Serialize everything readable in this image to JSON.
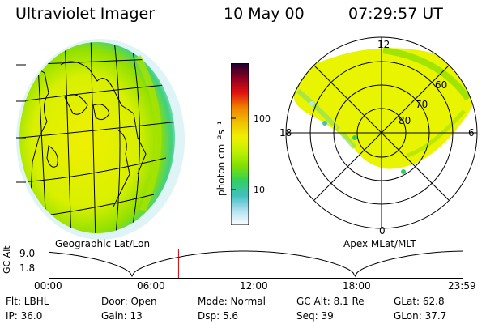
{
  "header": {
    "instrument": "Ultraviolet Imager",
    "date": "10 May 00",
    "time": "07:29:57 UT"
  },
  "colorbar": {
    "unit_label": "photon cm⁻²s⁻¹",
    "ticks": [
      "100",
      "10"
    ],
    "scale": "log",
    "colors": [
      "#1a0030",
      "#8b0020",
      "#e01010",
      "#f08000",
      "#f0c000",
      "#f0f000",
      "#c0f000",
      "#80e000",
      "#30d060",
      "#40c0c0",
      "#b0e0f0",
      "#ffffff"
    ]
  },
  "globe": {
    "label": "Geographic Lat/Lon"
  },
  "polar": {
    "label": "Apex  MLat/MLT",
    "mlt_labels": {
      "top": "12",
      "left": "18",
      "right": "6",
      "bottom": "0"
    },
    "lat_labels": [
      "60",
      "70",
      "80"
    ]
  },
  "timeline": {
    "axis_title": "GC Alt",
    "y_max": "9.0",
    "y_min": "1.8",
    "x_labels": [
      "00:00",
      "06:00",
      "12:00",
      "18:00",
      "23:59"
    ],
    "current_time_fraction": 0.3125
  },
  "info": {
    "row1": {
      "filter": "Flt: LBHL",
      "door": "Door: Open",
      "mode": "Mode: Normal",
      "gc_alt": "GC Alt: 8.1 Re",
      "glat": "GLat:  62.8"
    },
    "row2": {
      "ip": "IP: 36.0",
      "gain": "Gain: 13",
      "dsp": "Dsp:    5.6",
      "seq": "Seq: 39",
      "glon": "GLon:  37.7"
    }
  }
}
